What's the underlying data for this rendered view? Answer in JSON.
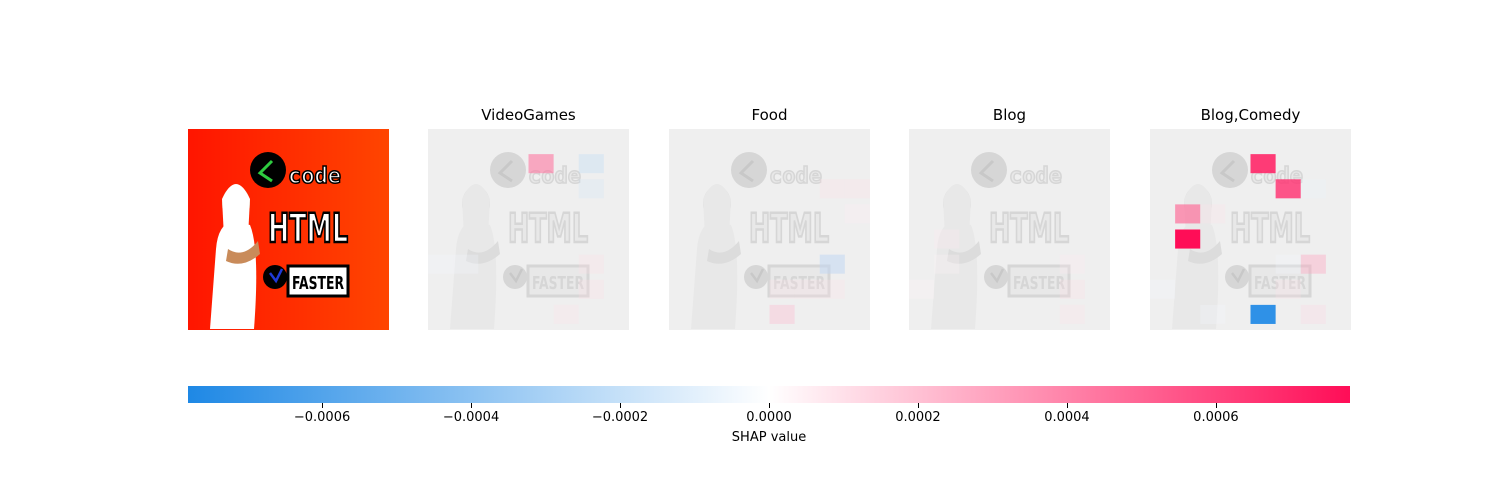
{
  "chart_data": {
    "type": "heatmap",
    "original_label": "",
    "image_text": [
      "code",
      "HTML",
      "FASTER"
    ],
    "outputs": [
      {
        "title": "VideoGames",
        "cells": [
          {
            "r": 1,
            "c": 4,
            "v": 0.00045
          },
          {
            "r": 1,
            "c": 6,
            "v": -0.00025
          },
          {
            "r": 2,
            "c": 6,
            "v": -0.00018
          },
          {
            "r": 5,
            "c": 0,
            "v": -4e-05
          },
          {
            "r": 5,
            "c": 1,
            "v": -4e-05
          },
          {
            "r": 5,
            "c": 6,
            "v": 0.00012
          },
          {
            "r": 6,
            "c": 6,
            "v": 0.00012
          },
          {
            "r": 7,
            "c": 5,
            "v": 0.0001
          }
        ]
      },
      {
        "title": "Food",
        "cells": [
          {
            "r": 2,
            "c": 6,
            "v": 0.00012
          },
          {
            "r": 2,
            "c": 7,
            "v": 0.00012
          },
          {
            "r": 3,
            "c": 7,
            "v": 6e-05
          },
          {
            "r": 5,
            "c": 6,
            "v": 8e-05
          },
          {
            "r": 5,
            "c": 6,
            "v": -0.0003
          },
          {
            "r": 6,
            "c": 6,
            "v": 0.0001
          },
          {
            "r": 6,
            "c": 4,
            "v": 0.0001
          },
          {
            "r": 6,
            "c": 5,
            "v": 0.0001
          },
          {
            "r": 7,
            "c": 4,
            "v": 0.00025
          }
        ]
      },
      {
        "title": "Blog",
        "cells": [
          {
            "r": 4,
            "c": 1,
            "v": 8e-05
          },
          {
            "r": 5,
            "c": 1,
            "v": 4e-05
          },
          {
            "r": 5,
            "c": 6,
            "v": 8e-05
          },
          {
            "r": 6,
            "c": 6,
            "v": 0.00012
          },
          {
            "r": 7,
            "c": 6,
            "v": 0.0001
          },
          {
            "r": 6,
            "c": 0,
            "v": 4e-05
          }
        ]
      },
      {
        "title": "Blog,Comedy",
        "cells": [
          {
            "r": 1,
            "c": 4,
            "v": 0.0007
          },
          {
            "r": 2,
            "c": 5,
            "v": 0.00065
          },
          {
            "r": 2,
            "c": 6,
            "v": -8e-05
          },
          {
            "r": 3,
            "c": 1,
            "v": 0.0005
          },
          {
            "r": 3,
            "c": 2,
            "v": 0.0001
          },
          {
            "r": 4,
            "c": 1,
            "v": 0.00078
          },
          {
            "r": 5,
            "c": 6,
            "v": 0.0003
          },
          {
            "r": 5,
            "c": 5,
            "v": -4e-05
          },
          {
            "r": 6,
            "c": 5,
            "v": 0.0001
          },
          {
            "r": 7,
            "c": 4,
            "v": -0.00075
          },
          {
            "r": 7,
            "c": 6,
            "v": 0.00015
          },
          {
            "r": 7,
            "c": 2,
            "v": -4e-05
          },
          {
            "r": 6,
            "c": 0,
            "v": -4e-05
          }
        ]
      }
    ],
    "colorbar": {
      "label": "SHAP value",
      "range": [
        -0.00078,
        0.00078
      ],
      "ticks": [
        -0.0006,
        -0.0004,
        -0.0002,
        0.0,
        0.0002,
        0.0004,
        0.0006
      ],
      "tick_labels": [
        "−0.0006",
        "−0.0004",
        "−0.0002",
        "0.0000",
        "0.0002",
        "0.0004",
        "0.0006"
      ],
      "colors": {
        "negative": "#1e88e5",
        "zero": "#ffffff",
        "positive": "#ff0d57"
      }
    }
  }
}
